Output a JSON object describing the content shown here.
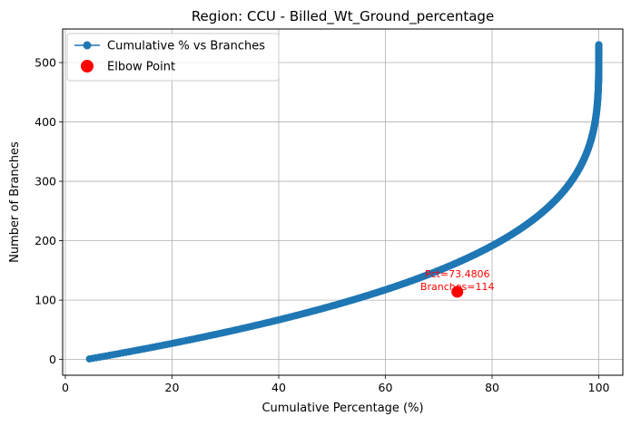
{
  "chart_data": {
    "type": "line",
    "title": "Region: CCU - Billed_Wt_Ground_percentage",
    "xlabel": "Cumulative Percentage (%)",
    "ylabel": "Number of Branches",
    "xlim": [
      -0.5,
      104.5
    ],
    "ylim": [
      -26.5,
      556.5
    ],
    "xticks": [
      0,
      20,
      40,
      60,
      80,
      100
    ],
    "yticks": [
      0,
      100,
      200,
      300,
      400,
      500
    ],
    "grid": true,
    "legend_position": "top-left",
    "series": [
      {
        "name": "Cumulative % vs Branches",
        "color": "#1f77b4",
        "marker": "circle",
        "total_points": 530,
        "curve_shape": "pct = 100 - 96.1 * (1 - n/530)^3.5",
        "sample_points": [
          {
            "x": 3.9,
            "y": 1
          },
          {
            "x": 7.0,
            "y": 2
          },
          {
            "x": 9.9,
            "y": 3
          },
          {
            "x": 20.0,
            "y": 8
          },
          {
            "x": 40.0,
            "y": 22
          },
          {
            "x": 60.0,
            "y": 57
          },
          {
            "x": 73.4806,
            "y": 114
          },
          {
            "x": 80.0,
            "y": 149
          },
          {
            "x": 90.0,
            "y": 226
          },
          {
            "x": 99.0,
            "y": 390
          },
          {
            "x": 100.0,
            "y": 530
          }
        ]
      },
      {
        "name": "Elbow Point",
        "color": "#ff0000",
        "marker": "circle",
        "points": [
          {
            "x": 73.4806,
            "y": 114
          }
        ]
      }
    ],
    "annotations": [
      {
        "text": "Pct=73.4806",
        "x": 73.4806,
        "y": 114,
        "color": "#ff0000"
      },
      {
        "text": "Branches=114",
        "x": 73.4806,
        "y": 114,
        "color": "#ff0000"
      }
    ]
  }
}
